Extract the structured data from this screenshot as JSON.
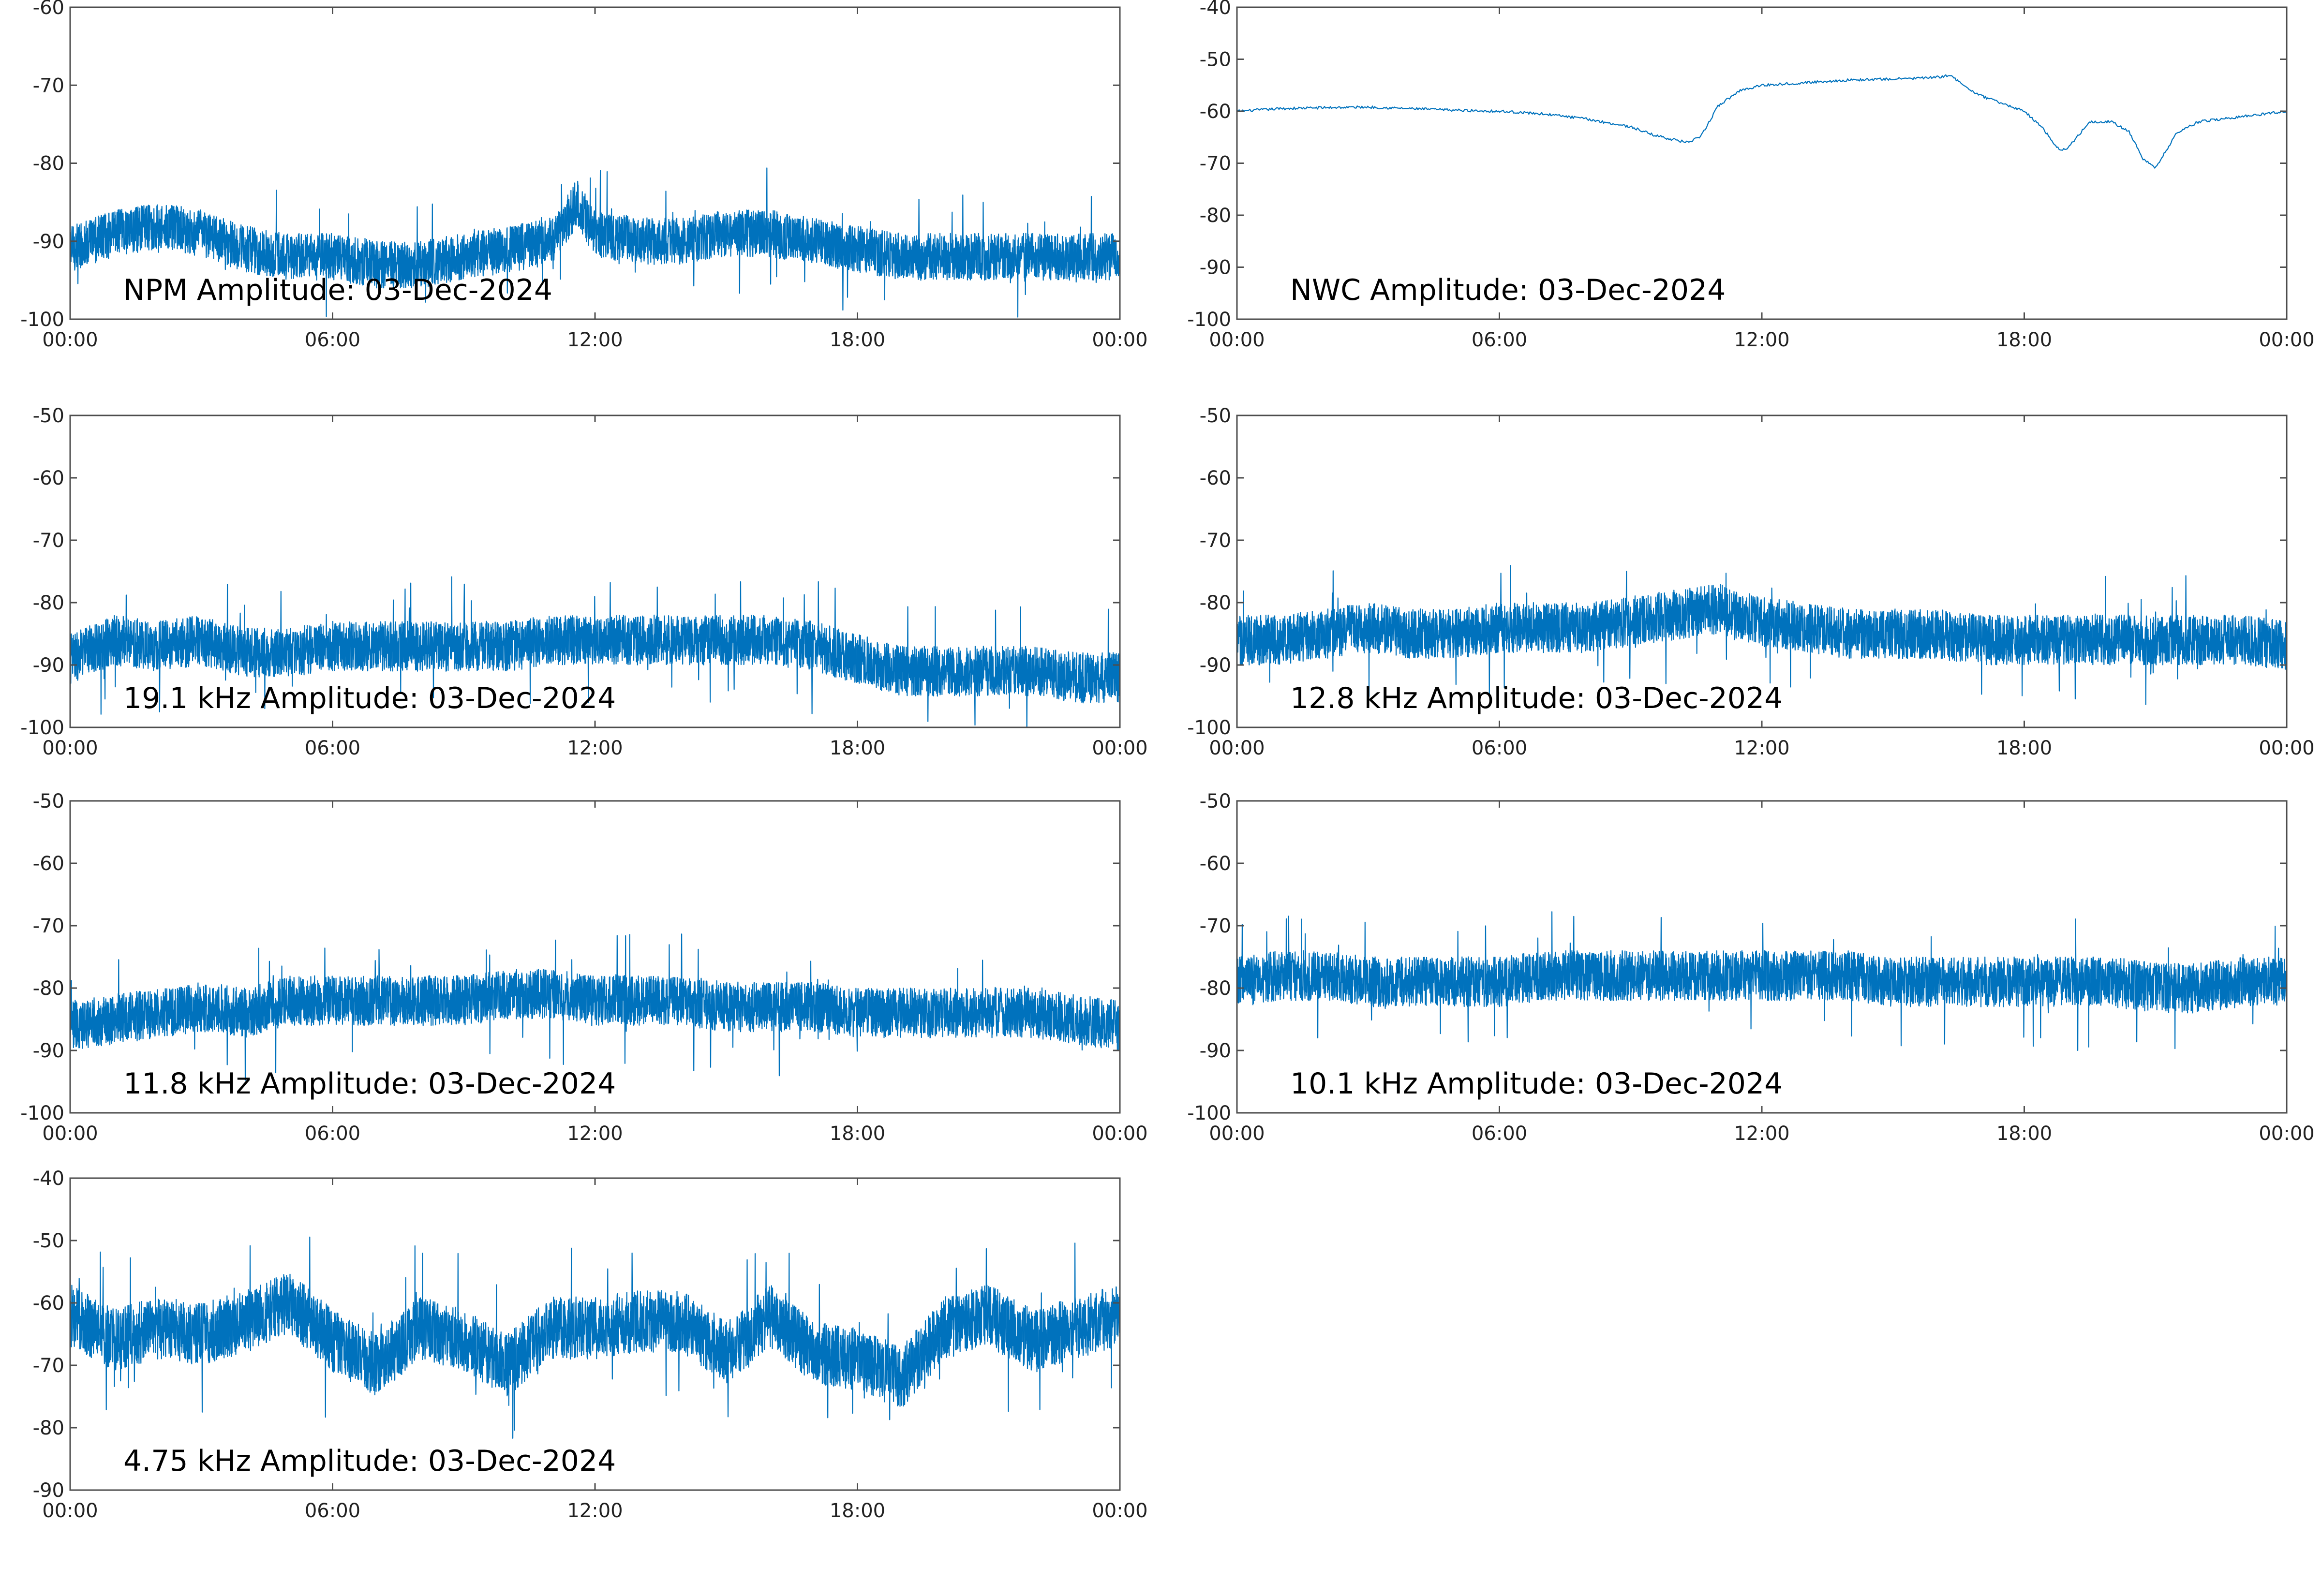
{
  "colors": {
    "series": "#0072BD",
    "axis": "#4d4d4d",
    "text": "#222222"
  },
  "chart_data": [
    {
      "type": "line",
      "title": "NPM Amplitude: 03-Dec-2024",
      "xlabel": "",
      "ylabel": "",
      "xticks": [
        "00:00",
        "06:00",
        "12:00",
        "18:00",
        "00:00"
      ],
      "xlim": [
        0,
        24
      ],
      "ylim": [
        -100,
        -60
      ],
      "yticks": [
        "-60",
        "-70",
        "-80",
        "-90",
        "-100"
      ],
      "grid": false,
      "series": [
        {
          "x": [
            0,
            1,
            2,
            3,
            4,
            5,
            6,
            7,
            8,
            9,
            10,
            11,
            11.6,
            12,
            13,
            14,
            15,
            16,
            17,
            18,
            19,
            20,
            21,
            22,
            23,
            24
          ],
          "y": [
            -91,
            -89,
            -88,
            -89,
            -91,
            -92,
            -92,
            -93,
            -93,
            -92,
            -91,
            -90,
            -85,
            -89,
            -90,
            -90,
            -89,
            -89,
            -90,
            -91,
            -92,
            -92,
            -92,
            -92,
            -92,
            -92
          ],
          "spread": [
            -3,
            3
          ]
        }
      ]
    },
    {
      "type": "line",
      "title": "NWC Amplitude: 03-Dec-2024",
      "xlabel": "",
      "ylabel": "",
      "xticks": [
        "00:00",
        "06:00",
        "12:00",
        "18:00",
        "00:00"
      ],
      "xlim": [
        0,
        24
      ],
      "ylim": [
        -100,
        -40
      ],
      "yticks": [
        "-40",
        "-50",
        "-60",
        "-70",
        "-80",
        "-90",
        "-100"
      ],
      "grid": false,
      "series": [
        {
          "x": [
            0,
            1,
            2,
            3,
            4,
            5,
            6,
            7,
            8,
            9,
            9.5,
            10,
            10.3,
            10.6,
            11,
            11.5,
            12,
            13,
            14,
            15,
            16,
            16.3,
            16.6,
            17,
            18,
            18.4,
            18.8,
            19,
            19.5,
            20,
            20.4,
            20.7,
            21,
            21.5,
            22,
            23,
            24
          ],
          "y": [
            -60,
            -59.5,
            -59.3,
            -59.2,
            -59.5,
            -59.8,
            -60,
            -60.5,
            -61.5,
            -63,
            -64.5,
            -65.5,
            -66,
            -65,
            -59,
            -56,
            -55,
            -54.5,
            -54,
            -53.8,
            -53.5,
            -53,
            -55,
            -57,
            -60,
            -63,
            -67.5,
            -67,
            -62,
            -62,
            -64,
            -69,
            -71,
            -64,
            -62,
            -61,
            -60
          ]
        }
      ]
    },
    {
      "type": "line",
      "title": "19.1 kHz Amplitude: 03-Dec-2024",
      "xlabel": "",
      "ylabel": "",
      "xticks": [
        "00:00",
        "06:00",
        "12:00",
        "18:00",
        "00:00"
      ],
      "xlim": [
        0,
        24
      ],
      "ylim": [
        -100,
        -50
      ],
      "yticks": [
        "-50",
        "-60",
        "-70",
        "-80",
        "-90",
        "-100"
      ],
      "grid": false,
      "series": [
        {
          "x": [
            0,
            1,
            2,
            3,
            4,
            5,
            6,
            7,
            8,
            9,
            10,
            11,
            12,
            13,
            14,
            15,
            16,
            17,
            18,
            19,
            20,
            21,
            22,
            23,
            24
          ],
          "y": [
            -89,
            -86,
            -87,
            -86,
            -88,
            -88,
            -87,
            -87,
            -87,
            -87,
            -87,
            -86,
            -86,
            -86,
            -86,
            -86,
            -86,
            -87,
            -89,
            -91,
            -91,
            -91,
            -91,
            -92,
            -92
          ],
          "spread": [
            -4,
            4
          ]
        }
      ]
    },
    {
      "type": "line",
      "title": "12.8 kHz Amplitude: 03-Dec-2024",
      "xlabel": "",
      "ylabel": "",
      "xticks": [
        "00:00",
        "06:00",
        "12:00",
        "18:00",
        "00:00"
      ],
      "xlim": [
        0,
        24
      ],
      "ylim": [
        -100,
        -50
      ],
      "yticks": [
        "-50",
        "-60",
        "-70",
        "-80",
        "-90",
        "-100"
      ],
      "grid": false,
      "series": [
        {
          "x": [
            0,
            1,
            2,
            3,
            4,
            5,
            6,
            7,
            8,
            9,
            10,
            11,
            12,
            13,
            14,
            15,
            16,
            17,
            18,
            19,
            20,
            21,
            22,
            23,
            24
          ],
          "y": [
            -86,
            -86,
            -85,
            -84,
            -85,
            -85,
            -84,
            -84,
            -84,
            -83,
            -82,
            -81,
            -83,
            -84,
            -85,
            -85,
            -85,
            -86,
            -86,
            -86,
            -86,
            -86,
            -86,
            -86,
            -87
          ],
          "spread": [
            -4,
            4
          ]
        }
      ]
    },
    {
      "type": "line",
      "title": "11.8 kHz Amplitude: 03-Dec-2024",
      "xlabel": "",
      "ylabel": "",
      "xticks": [
        "00:00",
        "06:00",
        "12:00",
        "18:00",
        "00:00"
      ],
      "xlim": [
        0,
        24
      ],
      "ylim": [
        -100,
        -50
      ],
      "yticks": [
        "-50",
        "-60",
        "-70",
        "-80",
        "-90",
        "-100"
      ],
      "grid": false,
      "series": [
        {
          "x": [
            0,
            1,
            2,
            3,
            4,
            5,
            6,
            7,
            8,
            9,
            10,
            11,
            12,
            13,
            14,
            15,
            16,
            17,
            18,
            19,
            20,
            21,
            22,
            23,
            24
          ],
          "y": [
            -86,
            -85,
            -84,
            -83,
            -84,
            -82,
            -82,
            -82,
            -82,
            -82,
            -81,
            -81,
            -82,
            -82,
            -82,
            -83,
            -83,
            -83,
            -84,
            -84,
            -84,
            -84,
            -84,
            -85,
            -86
          ],
          "spread": [
            -4,
            4
          ]
        }
      ]
    },
    {
      "type": "line",
      "title": "10.1 kHz Amplitude: 03-Dec-2024",
      "xlabel": "",
      "ylabel": "",
      "xticks": [
        "00:00",
        "06:00",
        "12:00",
        "18:00",
        "00:00"
      ],
      "xlim": [
        0,
        24
      ],
      "ylim": [
        -100,
        -50
      ],
      "yticks": [
        "-50",
        "-60",
        "-70",
        "-80",
        "-90",
        "-100"
      ],
      "grid": false,
      "series": [
        {
          "x": [
            0,
            1,
            2,
            3,
            4,
            5,
            6,
            7,
            8,
            9,
            10,
            11,
            12,
            13,
            14,
            15,
            16,
            17,
            18,
            19,
            20,
            21,
            22,
            23,
            24
          ],
          "y": [
            -79,
            -78,
            -78,
            -79,
            -79,
            -79,
            -79,
            -78,
            -78,
            -78,
            -78,
            -78,
            -78,
            -78,
            -78,
            -79,
            -79,
            -79,
            -79,
            -79,
            -79,
            -80,
            -80,
            -79,
            -79
          ],
          "spread": [
            -4,
            4
          ]
        }
      ]
    },
    {
      "type": "line",
      "title": "4.75 kHz Amplitude: 03-Dec-2024",
      "xlabel": "",
      "ylabel": "",
      "xticks": [
        "00:00",
        "06:00",
        "12:00",
        "18:00",
        "00:00"
      ],
      "xlim": [
        0,
        24
      ],
      "ylim": [
        -90,
        -40
      ],
      "yticks": [
        "-40",
        "-50",
        "-60",
        "-70",
        "-80",
        "-90"
      ],
      "grid": false,
      "series": [
        {
          "x": [
            0,
            1,
            2,
            3,
            4,
            5,
            6,
            7,
            8,
            9,
            10,
            11,
            12,
            13,
            14,
            15,
            16,
            17,
            18,
            19,
            20,
            21,
            22,
            23,
            24
          ],
          "y": [
            -62,
            -66,
            -64,
            -65,
            -63,
            -60,
            -66,
            -70,
            -64,
            -66,
            -70,
            -64,
            -64,
            -63,
            -63,
            -68,
            -62,
            -68,
            -69,
            -72,
            -64,
            -62,
            -66,
            -64,
            -62
          ],
          "spread": [
            -5,
            5
          ]
        }
      ]
    }
  ]
}
